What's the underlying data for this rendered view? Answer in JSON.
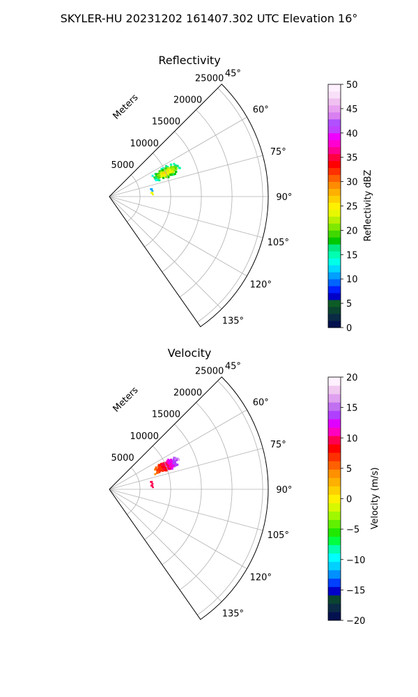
{
  "figure": {
    "suptitle": "SKYLER-HU  20231202  161407.302 UTC Elevation 16°"
  },
  "chart_data": [
    {
      "type": "heatmap",
      "projection": "polar-sector",
      "title": "Reflectivity",
      "azimuth_range_deg": [
        45,
        145
      ],
      "azimuth_tick_labels": [
        "45°",
        "60°",
        "75°",
        "90°",
        "105°",
        "120°",
        "135°"
      ],
      "azimuth_ticks_deg": [
        45,
        60,
        75,
        90,
        105,
        120,
        135
      ],
      "range_label": "Meters",
      "range_max_m": 25900,
      "range_ticks_m": [
        5000,
        10000,
        15000,
        20000,
        25000
      ],
      "range_tick_labels": [
        "5000",
        "10000",
        "15000",
        "20000",
        "25000"
      ],
      "grid": true,
      "colorbar": {
        "label": "Reflectivity dBZ",
        "min": 0,
        "max": 50,
        "ticks": [
          "0",
          "5",
          "10",
          "15",
          "20",
          "25",
          "30",
          "35",
          "40",
          "45",
          "50"
        ],
        "colors": [
          "#04114f",
          "#0a2a45",
          "#0b4431",
          "#0d5c26",
          "#0000c8",
          "#0020ff",
          "#0064ff",
          "#00a0ff",
          "#00d8ff",
          "#00ffe8",
          "#00ffb0",
          "#00e880",
          "#00c800",
          "#40d800",
          "#80e800",
          "#b8f000",
          "#e8f800",
          "#fff000",
          "#ffd000",
          "#ffb000",
          "#ff8c00",
          "#ff6000",
          "#ff3000",
          "#ff0000",
          "#ff0040",
          "#ff0090",
          "#ff00d0",
          "#f000ff",
          "#c040ff",
          "#b050ff",
          "#d880f0",
          "#e8a0f0",
          "#f0c0f0",
          "#f8e0f8",
          "#fff0ff"
        ]
      },
      "echoes": [
        {
          "azimuth_deg": 66,
          "range_m": 10000,
          "value": 28,
          "spread_deg": 6,
          "spread_m": 5500,
          "description": "main cell"
        },
        {
          "azimuth_deg": 80,
          "range_m": 6900,
          "value": 10,
          "note": "isolated small echo"
        },
        {
          "azimuth_deg": 85,
          "range_m": 6900,
          "value": 24,
          "note": "isolated small echo"
        }
      ]
    },
    {
      "type": "heatmap",
      "projection": "polar-sector",
      "title": "Velocity",
      "azimuth_range_deg": [
        45,
        145
      ],
      "azimuth_tick_labels": [
        "45°",
        "60°",
        "75°",
        "90°",
        "105°",
        "120°",
        "135°"
      ],
      "azimuth_ticks_deg": [
        45,
        60,
        75,
        90,
        105,
        120,
        135
      ],
      "range_label": "Meters",
      "range_max_m": 25900,
      "range_ticks_m": [
        5000,
        10000,
        15000,
        20000,
        25000
      ],
      "range_tick_labels": [
        "5000",
        "10000",
        "15000",
        "20000",
        "25000"
      ],
      "grid": true,
      "colorbar": {
        "label": "Velocity (m/s)",
        "min": -20,
        "max": 20,
        "ticks": [
          "−20",
          "−15",
          "−10",
          "−5",
          "0",
          "5",
          "10",
          "15",
          "20"
        ],
        "colors": [
          "#04114f",
          "#0a2a45",
          "#0b4431",
          "#0000c8",
          "#0040ff",
          "#0090ff",
          "#00d0ff",
          "#00ffff",
          "#00ffb0",
          "#00ff40",
          "#20e800",
          "#60f000",
          "#a0f800",
          "#d8f800",
          "#fff000",
          "#ffd000",
          "#ffb000",
          "#ff9000",
          "#ff6000",
          "#ff3000",
          "#ff0000",
          "#ff0050",
          "#ff00c0",
          "#e000ff",
          "#b040ff",
          "#c070f0",
          "#e0a0f0",
          "#f0c8f0",
          "#fff0ff"
        ]
      },
      "echoes": [
        {
          "azimuth_deg": 66,
          "range_m": 10000,
          "value": 10,
          "spread_deg": 6,
          "spread_m": 5500,
          "gradient": "red near radar to purple far",
          "description": "main cell"
        },
        {
          "azimuth_deg": 80,
          "range_m": 6900,
          "value": 10,
          "note": "isolated small echo"
        },
        {
          "azimuth_deg": 85,
          "range_m": 6900,
          "value": 9,
          "note": "isolated small echo"
        }
      ]
    }
  ]
}
